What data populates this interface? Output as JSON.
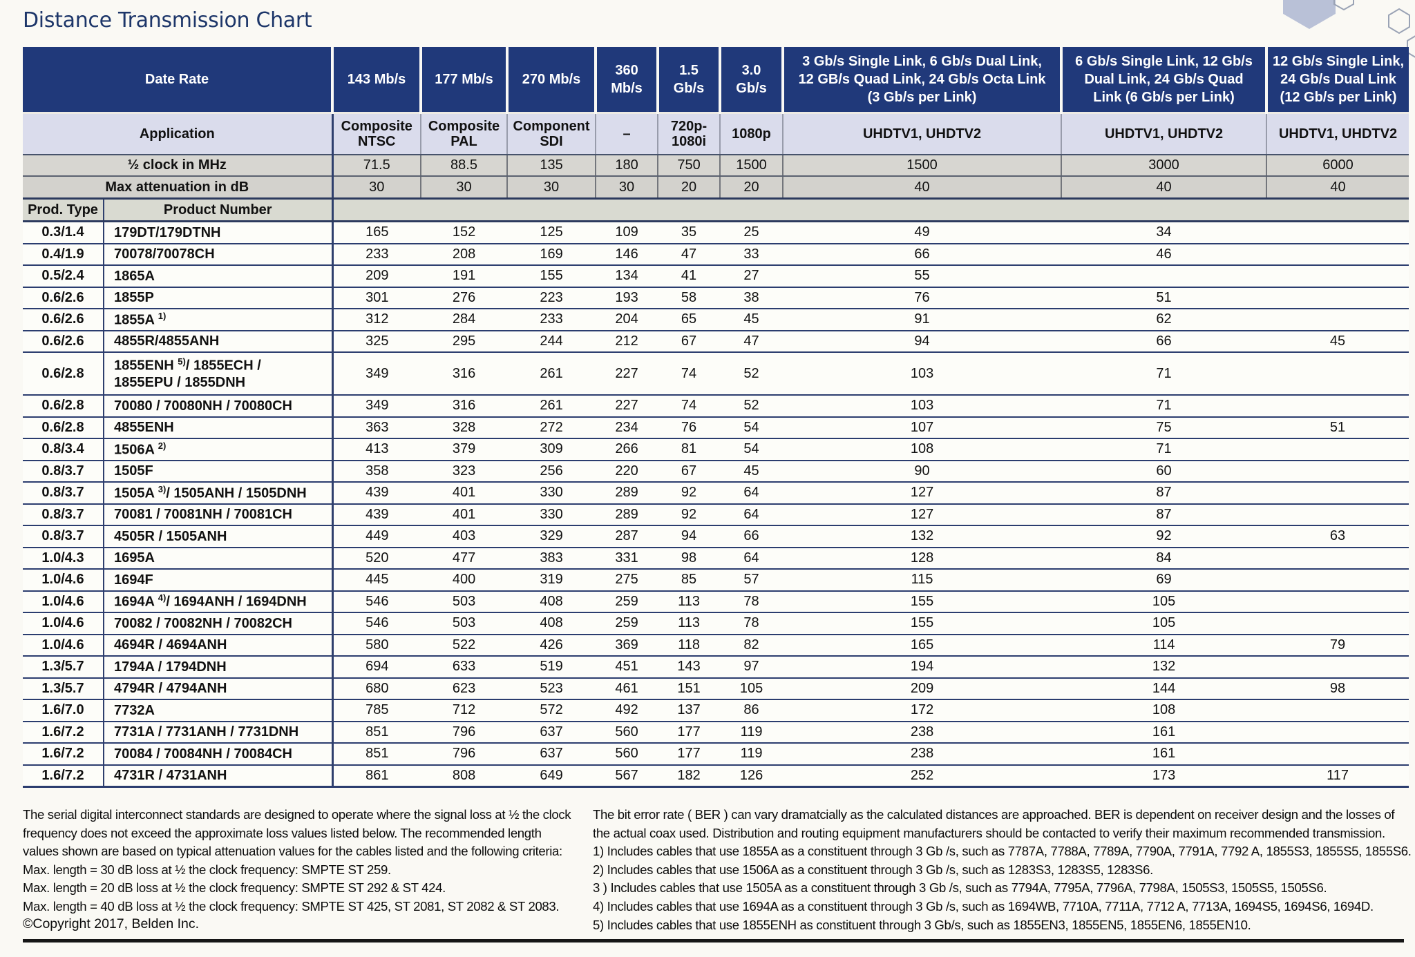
{
  "page": {
    "title": "Distance Transmission Chart"
  },
  "table": {
    "corner": {
      "date_rate": "Date Rate",
      "application": "Application",
      "half_clock": "½ clock in MHz",
      "max_attenuation": "Max attenuation in dB",
      "prod_type": "Prod. Type",
      "product_number": "Product Number"
    },
    "columns": [
      {
        "rate": "143 Mb/s",
        "application": "Composite\nNTSC",
        "half_clock": "71.5",
        "max_attenuation": "30"
      },
      {
        "rate": "177 Mb/s",
        "application": "Composite\nPAL",
        "half_clock": "88.5",
        "max_attenuation": "30"
      },
      {
        "rate": "270 Mb/s",
        "application": "Component\nSDI",
        "half_clock": "135",
        "max_attenuation": "30"
      },
      {
        "rate": "360\nMb/s",
        "application": "–",
        "half_clock": "180",
        "max_attenuation": "30"
      },
      {
        "rate": "1.5\nGb/s",
        "application": "720p-\n1080i",
        "half_clock": "750",
        "max_attenuation": "20"
      },
      {
        "rate": "3.0\nGb/s",
        "application": "1080p",
        "half_clock": "1500",
        "max_attenuation": "20"
      },
      {
        "rate": "3 Gb/s Single Link, 6 Gb/s Dual Link,\n12 GB/s Quad Link, 24 Gb/s Octa Link\n(3 Gb/s per Link)",
        "application": "UHDTV1, UHDTV2",
        "half_clock": "1500",
        "max_attenuation": "40"
      },
      {
        "rate": "6 Gb/s Single Link, 12 Gb/s\nDual Link, 24 Gb/s Quad\nLink (6 Gb/s per Link)",
        "application": "UHDTV1, UHDTV2",
        "half_clock": "3000",
        "max_attenuation": "40"
      },
      {
        "rate": "12 Gb/s Single Link,\n24 Gb/s Dual Link\n(12 Gb/s per Link)",
        "application": "UHDTV1, UHDTV2",
        "half_clock": "6000",
        "max_attenuation": "40"
      }
    ],
    "rows": [
      {
        "type": "0.3/1.4",
        "product": "179DT/179DTNH",
        "sup": "",
        "product2": "",
        "tall": false,
        "values": [
          "165",
          "152",
          "125",
          "109",
          "35",
          "25",
          "49",
          "34",
          ""
        ]
      },
      {
        "type": "0.4/1.9",
        "product": "70078/70078CH",
        "sup": "",
        "product2": "",
        "tall": false,
        "values": [
          "233",
          "208",
          "169",
          "146",
          "47",
          "33",
          "66",
          "46",
          ""
        ]
      },
      {
        "type": "0.5/2.4",
        "product": "1865A",
        "sup": "",
        "product2": "",
        "tall": false,
        "values": [
          "209",
          "191",
          "155",
          "134",
          "41",
          "27",
          "55",
          "",
          ""
        ]
      },
      {
        "type": "0.6/2.6",
        "product": "1855P",
        "sup": "",
        "product2": "",
        "tall": false,
        "values": [
          "301",
          "276",
          "223",
          "193",
          "58",
          "38",
          "76",
          "51",
          ""
        ]
      },
      {
        "type": "0.6/2.6",
        "product": "1855A ",
        "sup": "1)",
        "product2": "",
        "tall": false,
        "values": [
          "312",
          "284",
          "233",
          "204",
          "65",
          "45",
          "91",
          "62",
          ""
        ]
      },
      {
        "type": "0.6/2.6",
        "product": "4855R/4855ANH",
        "sup": "",
        "product2": "",
        "tall": false,
        "values": [
          "325",
          "295",
          "244",
          "212",
          "67",
          "47",
          "94",
          "66",
          "45"
        ]
      },
      {
        "type": "0.6/2.8",
        "product": "1855ENH ",
        "sup": "5)",
        "product2": "/ 1855ECH /\n1855EPU / 1855DNH",
        "tall": true,
        "values": [
          "349",
          "316",
          "261",
          "227",
          "74",
          "52",
          "103",
          "71",
          ""
        ]
      },
      {
        "type": "0.6/2.8",
        "product": "70080 / 70080NH / 70080CH",
        "sup": "",
        "product2": "",
        "tall": false,
        "values": [
          "349",
          "316",
          "261",
          "227",
          "74",
          "52",
          "103",
          "71",
          ""
        ]
      },
      {
        "type": "0.6/2.8",
        "product": "4855ENH",
        "sup": "",
        "product2": "",
        "tall": false,
        "values": [
          "363",
          "328",
          "272",
          "234",
          "76",
          "54",
          "107",
          "75",
          "51"
        ]
      },
      {
        "type": "0.8/3.4",
        "product": "1506A ",
        "sup": "2)",
        "product2": "",
        "tall": false,
        "values": [
          "413",
          "379",
          "309",
          "266",
          "81",
          "54",
          "108",
          "71",
          ""
        ]
      },
      {
        "type": "0.8/3.7",
        "product": "1505F",
        "sup": "",
        "product2": "",
        "tall": false,
        "values": [
          "358",
          "323",
          "256",
          "220",
          "67",
          "45",
          "90",
          "60",
          ""
        ]
      },
      {
        "type": "0.8/3.7",
        "product": "1505A ",
        "sup": "3)",
        "product2": "/ 1505ANH / 1505DNH",
        "tall": false,
        "values": [
          "439",
          "401",
          "330",
          "289",
          "92",
          "64",
          "127",
          "87",
          ""
        ]
      },
      {
        "type": "0.8/3.7",
        "product": "70081 / 70081NH / 70081CH",
        "sup": "",
        "product2": "",
        "tall": false,
        "values": [
          "439",
          "401",
          "330",
          "289",
          "92",
          "64",
          "127",
          "87",
          ""
        ]
      },
      {
        "type": "0.8/3.7",
        "product": "4505R / 1505ANH",
        "sup": "",
        "product2": "",
        "tall": false,
        "values": [
          "449",
          "403",
          "329",
          "287",
          "94",
          "66",
          "132",
          "92",
          "63"
        ]
      },
      {
        "type": "1.0/4.3",
        "product": "1695A",
        "sup": "",
        "product2": "",
        "tall": false,
        "values": [
          "520",
          "477",
          "383",
          "331",
          "98",
          "64",
          "128",
          "84",
          ""
        ]
      },
      {
        "type": "1.0/4.6",
        "product": "1694F",
        "sup": "",
        "product2": "",
        "tall": false,
        "values": [
          "445",
          "400",
          "319",
          "275",
          "85",
          "57",
          "115",
          "69",
          ""
        ]
      },
      {
        "type": "1.0/4.6",
        "product": "1694A ",
        "sup": "4)",
        "product2": "/ 1694ANH / 1694DNH",
        "tall": false,
        "values": [
          "546",
          "503",
          "408",
          "259",
          "113",
          "78",
          "155",
          "105",
          ""
        ]
      },
      {
        "type": "1.0/4.6",
        "product": "70082 / 70082NH / 70082CH",
        "sup": "",
        "product2": "",
        "tall": false,
        "values": [
          "546",
          "503",
          "408",
          "259",
          "113",
          "78",
          "155",
          "105",
          ""
        ]
      },
      {
        "type": "1.0/4.6",
        "product": "4694R / 4694ANH",
        "sup": "",
        "product2": "",
        "tall": false,
        "values": [
          "580",
          "522",
          "426",
          "369",
          "118",
          "82",
          "165",
          "114",
          "79"
        ]
      },
      {
        "type": "1.3/5.7",
        "product": "1794A / 1794DNH",
        "sup": "",
        "product2": "",
        "tall": false,
        "values": [
          "694",
          "633",
          "519",
          "451",
          "143",
          "97",
          "194",
          "132",
          ""
        ]
      },
      {
        "type": "1.3/5.7",
        "product": "4794R / 4794ANH",
        "sup": "",
        "product2": "",
        "tall": false,
        "values": [
          "680",
          "623",
          "523",
          "461",
          "151",
          "105",
          "209",
          "144",
          "98"
        ]
      },
      {
        "type": "1.6/7.0",
        "product": "7732A",
        "sup": "",
        "product2": "",
        "tall": false,
        "values": [
          "785",
          "712",
          "572",
          "492",
          "137",
          "86",
          "172",
          "108",
          ""
        ]
      },
      {
        "type": "1.6/7.2",
        "product": "7731A / 7731ANH / 7731DNH",
        "sup": "",
        "product2": "",
        "tall": false,
        "values": [
          "851",
          "796",
          "637",
          "560",
          "177",
          "119",
          "238",
          "161",
          ""
        ]
      },
      {
        "type": "1.6/7.2",
        "product": "70084 / 70084NH / 70084CH",
        "sup": "",
        "product2": "",
        "tall": false,
        "values": [
          "851",
          "796",
          "637",
          "560",
          "177",
          "119",
          "238",
          "161",
          ""
        ]
      },
      {
        "type": "1.6/7.2",
        "product": "4731R / 4731ANH",
        "sup": "",
        "product2": "",
        "tall": false,
        "values": [
          "861",
          "808",
          "649",
          "567",
          "182",
          "126",
          "252",
          "173",
          "117"
        ]
      }
    ]
  },
  "footer": {
    "left_lines": [
      "The serial digital interconnect standards are designed to operate where the signal loss at ½ the clock",
      "frequency does not exceed the approximate loss values listed below. The recommended length",
      "values shown are based on typical attenuation values for the cables listed and the following criteria:",
      "Max. length = 30 dB loss at ½ the clock frequency: SMPTE ST 259.",
      "Max. length = 20 dB loss at ½ the clock frequency: SMPTE ST 292 & ST 424.",
      "Max. length = 40 dB loss at ½ the clock frequency: SMPTE ST 425, ST 2081, ST 2082 & ST 2083."
    ],
    "copyright": "©Copyright 2017, Belden Inc.",
    "right_lines": [
      "The bit error rate ( BER ) can vary dramatcially as the calculated distances are approached. BER is dependent on receiver design and the losses of",
      "the actual coax used. Distribution and routing equipment manufacturers should be contacted to verify their maximum recommended transmission.",
      "1) Includes cables that use 1855A as a constituent through 3 Gb /s, such as 7787A, 7788A, 7789A, 7790A, 7791A, 7792 A, 1855S3, 1855S5, 1855S6.",
      "2) Includes cables that use 1506A as a constituent through 3 Gb /s, such as 1283S3, 1283S5, 1283S6.",
      "3 ) Includes cables that use 1505A as a constituent through 3 Gb /s, such as 7794A, 7795A, 7796A, 7798A, 1505S3, 1505S5, 1505S6.",
      "4) Includes cables that use 1694A as a constituent through 3 Gb /s, such as 1694WB, 7710A, 7711A, 7712 A, 7713A, 1694S5, 1694S6, 1694D.",
      "5) Includes cables that use 1855ENH as constituent through 3 Gb/s, such as 1855EN3, 1855EN5, 1855EN6, 1855EN10."
    ]
  }
}
